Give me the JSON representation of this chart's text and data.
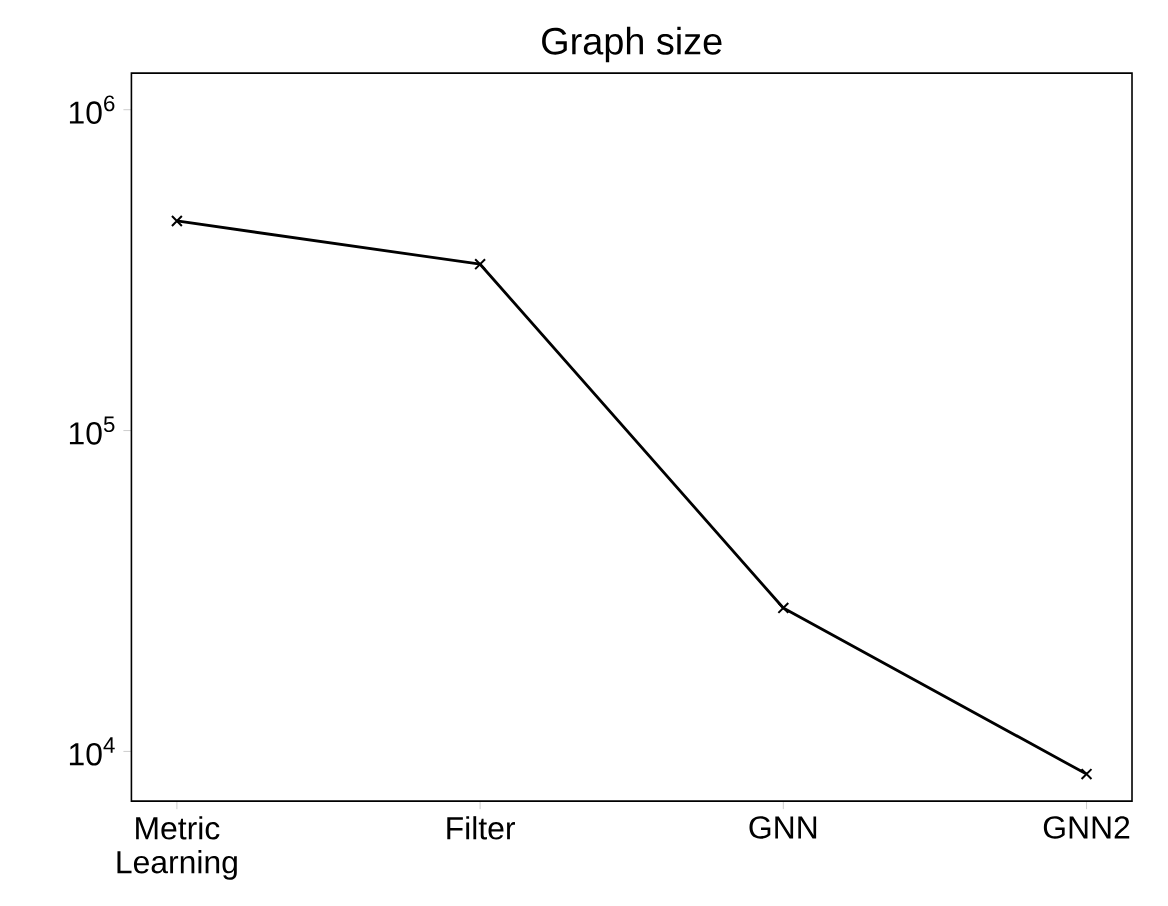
{
  "chart_data": {
    "type": "line",
    "title": "Graph size",
    "categories": [
      "Metric Learning",
      "Filter",
      "GNN",
      "GNN2"
    ],
    "series": [
      {
        "color": "#000000",
        "values": [
          450000,
          330000,
          28000,
          8500
        ]
      }
    ],
    "log": "y",
    "ylim": [
      7000,
      1300000
    ],
    "yticks": [
      {
        "value": 10000,
        "label": "10$^{4}$"
      },
      {
        "value": 100000,
        "label": "10$^{5}$"
      },
      {
        "value": 1000000,
        "label": "10$^{6}$"
      }
    ],
    "marker": "cross",
    "line_style": "solid",
    "grid": false
  }
}
